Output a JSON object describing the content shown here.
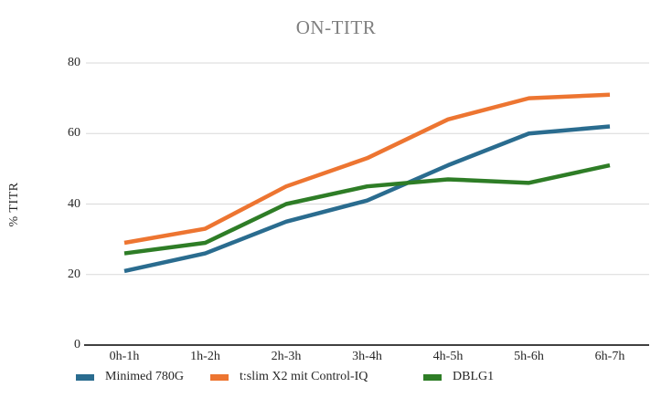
{
  "chart_data": {
    "type": "line",
    "title": "ON-TITR",
    "xlabel": "",
    "ylabel": "% TITR",
    "categories": [
      "0h-1h",
      "1h-2h",
      "2h-3h",
      "3h-4h",
      "4h-5h",
      "5h-6h",
      "6h-7h"
    ],
    "yticks": [
      0,
      20,
      40,
      60,
      80
    ],
    "ylim": [
      0,
      80
    ],
    "grid": true,
    "legend_position": "bottom-left",
    "series": [
      {
        "name": "Minimed 780G",
        "color": "#2A6C8F",
        "values": [
          21,
          26,
          35,
          41,
          51,
          60,
          62
        ]
      },
      {
        "name": "t:slim X2 mit Control-IQ",
        "color": "#ED7531",
        "values": [
          29,
          33,
          45,
          53,
          64,
          70,
          71
        ]
      },
      {
        "name": "DBLG1",
        "color": "#2E7D26",
        "values": [
          26,
          29,
          40,
          45,
          47,
          46,
          51
        ]
      }
    ]
  },
  "colors": {
    "title": "#7f7f7f",
    "axis_line": "#404040",
    "gridline": "#d9d9d9",
    "tick_text": "#262626",
    "background": "#ffffff"
  }
}
